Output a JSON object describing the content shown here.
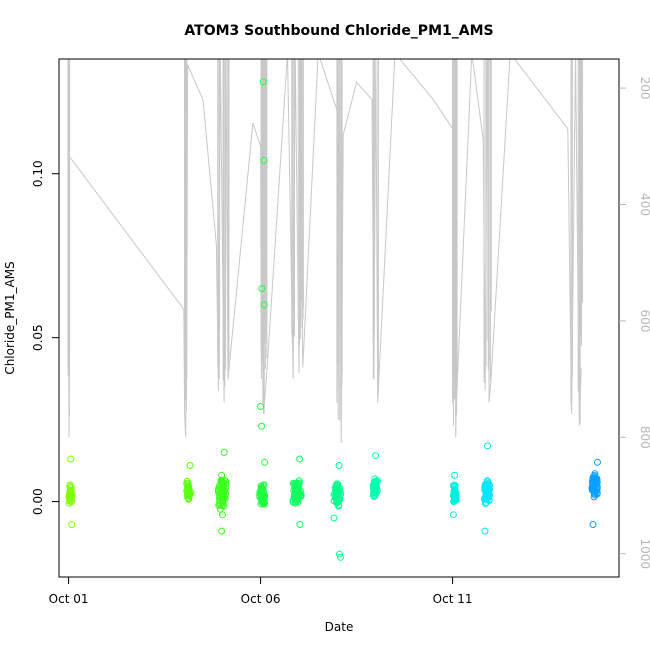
{
  "chart_data": {
    "type": "scatter",
    "title": "ATOM3 Southbound Chloride_PM1_AMS",
    "xlabel": "Date",
    "ylabel": "Chloride_PM1_AMS",
    "x_axis": {
      "type": "date",
      "range": [
        "2017-09-30T18:00",
        "2017-10-15T08:00"
      ],
      "ticks": [
        {
          "value": "2017-10-01",
          "label": "Oct 01"
        },
        {
          "value": "2017-10-06",
          "label": "Oct 06"
        },
        {
          "value": "2017-10-11",
          "label": "Oct 11"
        }
      ]
    },
    "y_axis": {
      "range": [
        -0.023,
        0.135
      ],
      "ticks": [
        {
          "value": 0.0,
          "label": "0.00"
        },
        {
          "value": 0.05,
          "label": "0.05"
        },
        {
          "value": 0.1,
          "label": "0.10"
        }
      ]
    },
    "y2_axis": {
      "note": "secondary axis (inverted), grey line series",
      "range": [
        1040,
        150
      ],
      "ticks": [
        {
          "value": 200,
          "label": "200"
        },
        {
          "value": 400,
          "label": "400"
        },
        {
          "value": 600,
          "label": "600"
        },
        {
          "value": 800,
          "label": "800"
        },
        {
          "value": 1000,
          "label": "1000"
        }
      ]
    },
    "grid": false,
    "legend": "none",
    "colors": {
      "line_series": "#c8c8c8",
      "point_gradient": [
        "#7fff00",
        "#00ff40",
        "#00ffc0",
        "#00e5ff",
        "#0090ff"
      ]
    },
    "point_clusters": [
      {
        "day": "2017-10-01",
        "x_center": 1.05,
        "x_spread": 0.06,
        "y_center": 0.002,
        "y_spread": 0.004,
        "n": 35,
        "color": "#7fff00",
        "outliers": [
          0.013,
          -0.007
        ]
      },
      {
        "day": "2017-10-04",
        "x_center": 4.12,
        "x_spread": 0.07,
        "y_center": 0.003,
        "y_spread": 0.004,
        "n": 30,
        "color": "#5aff10",
        "outliers": [
          0.011
        ]
      },
      {
        "day": "2017-10-05",
        "x_center": 5.0,
        "x_spread": 0.14,
        "y_center": 0.003,
        "y_spread": 0.006,
        "n": 80,
        "color": "#3fff1e",
        "outliers": [
          0.015,
          -0.009,
          -0.004
        ]
      },
      {
        "day": "2017-10-06",
        "x_center": 6.05,
        "x_spread": 0.08,
        "y_center": 0.002,
        "y_spread": 0.005,
        "n": 55,
        "color": "#20ff40",
        "outliers": [
          0.128,
          0.104,
          0.065,
          0.06,
          0.029,
          0.023,
          0.012
        ]
      },
      {
        "day": "2017-10-07",
        "x_center": 6.95,
        "x_spread": 0.14,
        "y_center": 0.003,
        "y_spread": 0.005,
        "n": 70,
        "color": "#10ff60",
        "outliers": [
          0.013,
          -0.007
        ]
      },
      {
        "day": "2017-10-08",
        "x_center": 8.0,
        "x_spread": 0.12,
        "y_center": 0.002,
        "y_spread": 0.005,
        "n": 60,
        "color": "#00ff90",
        "outliers": [
          0.011,
          -0.016,
          -0.017,
          -0.005
        ]
      },
      {
        "day": "2017-10-09",
        "x_center": 8.98,
        "x_spread": 0.08,
        "y_center": 0.004,
        "y_spread": 0.004,
        "n": 50,
        "color": "#00ffb0",
        "outliers": [
          0.014
        ]
      },
      {
        "day": "2017-10-11",
        "x_center": 11.05,
        "x_spread": 0.06,
        "y_center": 0.002,
        "y_spread": 0.004,
        "n": 40,
        "color": "#00f0e0",
        "outliers": [
          0.008,
          -0.004
        ]
      },
      {
        "day": "2017-10-12",
        "x_center": 11.9,
        "x_spread": 0.11,
        "y_center": 0.003,
        "y_spread": 0.005,
        "n": 70,
        "color": "#00e8ff",
        "outliers": [
          0.017,
          -0.009
        ]
      },
      {
        "day": "2017-10-14",
        "x_center": 14.7,
        "x_spread": 0.1,
        "y_center": 0.005,
        "y_spread": 0.004,
        "n": 70,
        "color": "#0aa0ff",
        "outliers": [
          0.012,
          -0.007
        ]
      }
    ],
    "line_series": {
      "name": "",
      "points": [
        [
          1.0,
          140
        ],
        [
          1.0,
          480
        ],
        [
          1.01,
          800
        ],
        [
          1.02,
          320
        ],
        [
          1.05,
          320
        ],
        [
          4.0,
          580
        ],
        [
          4.02,
          760
        ],
        [
          4.05,
          800
        ],
        [
          4.08,
          580
        ],
        [
          4.1,
          160
        ],
        [
          4.5,
          220
        ],
        [
          4.85,
          470
        ],
        [
          4.9,
          720
        ],
        [
          4.95,
          140
        ],
        [
          5.05,
          740
        ],
        [
          5.1,
          140
        ],
        [
          5.15,
          700
        ],
        [
          5.8,
          260
        ],
        [
          6.0,
          300
        ],
        [
          6.02,
          700
        ],
        [
          6.05,
          140
        ],
        [
          6.08,
          760
        ],
        [
          6.1,
          740
        ],
        [
          6.15,
          700
        ],
        [
          6.7,
          140
        ],
        [
          6.85,
          700
        ],
        [
          6.9,
          140
        ],
        [
          7.0,
          690
        ],
        [
          7.05,
          140
        ],
        [
          7.1,
          680
        ],
        [
          7.5,
          140
        ],
        [
          8.0,
          240
        ],
        [
          8.02,
          770
        ],
        [
          8.05,
          140
        ],
        [
          8.1,
          810
        ],
        [
          8.15,
          280
        ],
        [
          8.5,
          190
        ],
        [
          8.9,
          220
        ],
        [
          8.95,
          700
        ],
        [
          9.0,
          140
        ],
        [
          9.05,
          740
        ],
        [
          9.5,
          140
        ],
        [
          10.5,
          220
        ],
        [
          11.0,
          270
        ],
        [
          11.02,
          780
        ],
        [
          11.05,
          140
        ],
        [
          11.08,
          800
        ],
        [
          11.1,
          740
        ],
        [
          11.5,
          140
        ],
        [
          11.8,
          290
        ],
        [
          11.85,
          720
        ],
        [
          11.9,
          140
        ],
        [
          11.95,
          740
        ],
        [
          12.0,
          700
        ],
        [
          12.5,
          140
        ],
        [
          14.0,
          270
        ],
        [
          14.1,
          760
        ],
        [
          14.2,
          140
        ],
        [
          14.3,
          780
        ],
        [
          14.35,
          680
        ]
      ]
    }
  }
}
